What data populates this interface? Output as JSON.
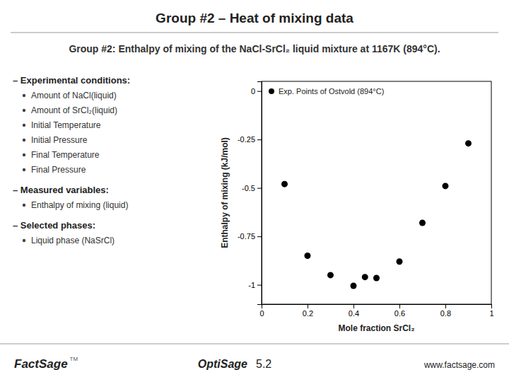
{
  "chart_data": {
    "type": "scatter",
    "title": "Group #2 – Heat of mixing data",
    "subtitle": "Group #2:  Enthalpy of mixing of the NaCl-SrCl₂ liquid mixture at 1167K (894°C).",
    "x_label": "Mole fraction SrCl₂",
    "y_label": "Enthalpy of mixing (kJ/mol)",
    "x": [
      0.1,
      0.2,
      0.3,
      0.4,
      0.45,
      0.5,
      0.6,
      0.7,
      0.8,
      0.9
    ],
    "series": [
      {
        "name": "Exp. Points of Ostvold (894°C)",
        "color": "#000000",
        "values": [
          -0.48,
          -0.85,
          -0.95,
          -1.005,
          -0.96,
          -0.965,
          -0.88,
          -0.68,
          -0.49,
          -0.27
        ]
      }
    ],
    "xlim": [
      0,
      1
    ],
    "ylim": [
      -1.1,
      0.05
    ],
    "xticks": [
      0,
      0.2,
      0.4,
      0.6,
      0.8,
      1
    ],
    "yticks": [
      0,
      -0.25,
      -0.5,
      -0.75,
      -1
    ],
    "annotations": [
      [
        "– Experimental conditions:",
        "Amount of NaCl(liquid)",
        "Amount of SrCl₂(liquid)",
        "Initial Temperature",
        "Initial Pressure",
        "Final Temperature",
        "Final Pressure"
      ],
      [
        "– Measured variables:",
        "Enthalpy of mixing (liquid)"
      ],
      [
        "– Selected phases:",
        "Liquid phase (NaSrCl)"
      ],
      [
        "FactSage",
        "TM",
        "OptiSage",
        "5.2",
        "www.factsage.com"
      ]
    ]
  }
}
